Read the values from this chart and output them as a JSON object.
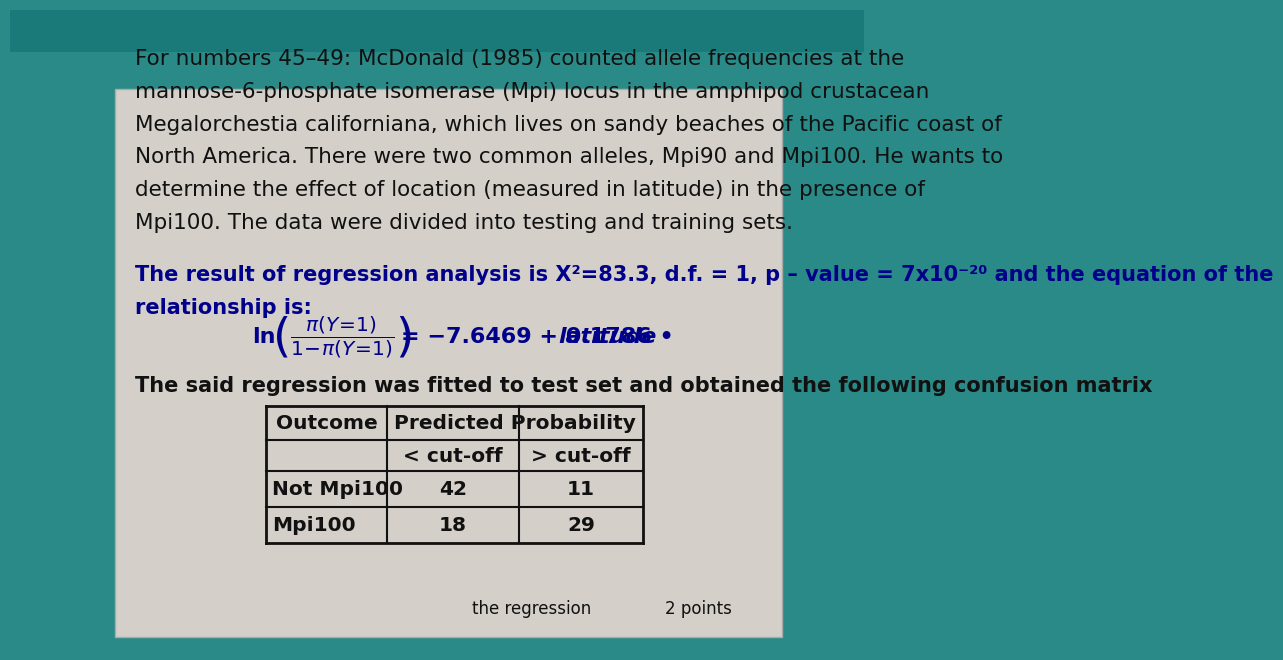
{
  "bg_outer": "#2a8a87",
  "bg_card": "#d4cfc8",
  "black": "#111111",
  "dark_blue": "#00008B",
  "white": "#ffffff",
  "teal_stripe": "#1a7a7a",
  "para1_lines": [
    "For numbers 45–49: McDonald (1985) counted allele frequencies at the",
    "mannose-6-phosphate isomerase (Mpi) locus in the amphipod crustacean",
    "Megalorchestia californiana, which lives on sandy beaches of the Pacific coast of",
    "North America. There were two common alleles, Mpi90 and Mpi100. He wants to",
    "determine the effect of location (measured in latitude) in the presence of",
    "Mpi100. The data were divided into testing and training sets."
  ],
  "result_line1": "The result of regression analysis is X²=83.3, d.f. = 1, p – value = 7x10⁻²⁰ and the equation of the",
  "result_line2": "relationship is:",
  "fitted_text": "The said regression was fitted to test set and obtained the following confusion matrix",
  "table_header_col0": "Outcome",
  "table_header_col1": "Predicted Probability",
  "table_subheader_col1": "< cut-off",
  "table_subheader_col2": "> cut-off",
  "table_row1_label": "Not Mpi100",
  "table_row1_val1": "42",
  "table_row1_val2": "11",
  "table_row2_label": "Mpi100",
  "table_row2_val1": "18",
  "table_row2_val2": "29",
  "bottom_text": "the regression",
  "bottom_points": "2 points"
}
